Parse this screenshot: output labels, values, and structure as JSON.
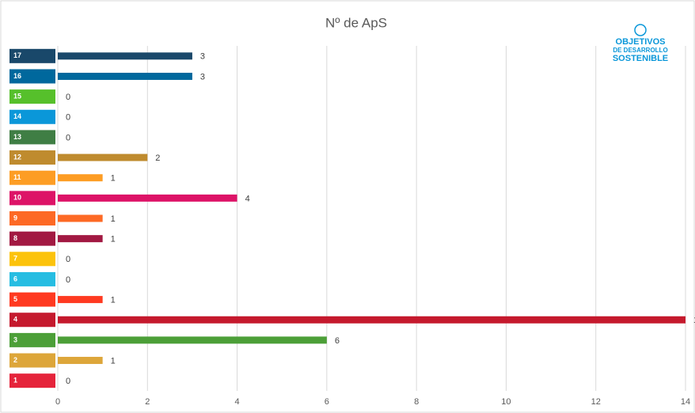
{
  "chart_data": {
    "type": "bar",
    "orientation": "horizontal",
    "title": "Nº de ApS",
    "categories": [
      "17",
      "16",
      "15",
      "14",
      "13",
      "12",
      "11",
      "10",
      "9",
      "8",
      "7",
      "6",
      "5",
      "4",
      "3",
      "2",
      "1"
    ],
    "values": [
      3,
      3,
      0,
      0,
      0,
      2,
      1,
      4,
      1,
      1,
      0,
      0,
      1,
      14,
      6,
      1,
      0
    ],
    "colors": [
      "#19486a",
      "#00689d",
      "#56c02b",
      "#0a97d9",
      "#3f7e44",
      "#bf8b2e",
      "#fd9d24",
      "#dd1367",
      "#fd6925",
      "#a21942",
      "#fcc30b",
      "#26bde2",
      "#ff3a21",
      "#c5192d",
      "#4c9f38",
      "#dda63a",
      "#e5243b"
    ],
    "xlim": [
      0,
      14
    ],
    "xticks": [
      0,
      2,
      4,
      6,
      8,
      10,
      12,
      14
    ],
    "grid": true,
    "logo": [
      "OBJETIVOS",
      "DE DESARROLLO",
      "SOSTENIBLE"
    ]
  }
}
